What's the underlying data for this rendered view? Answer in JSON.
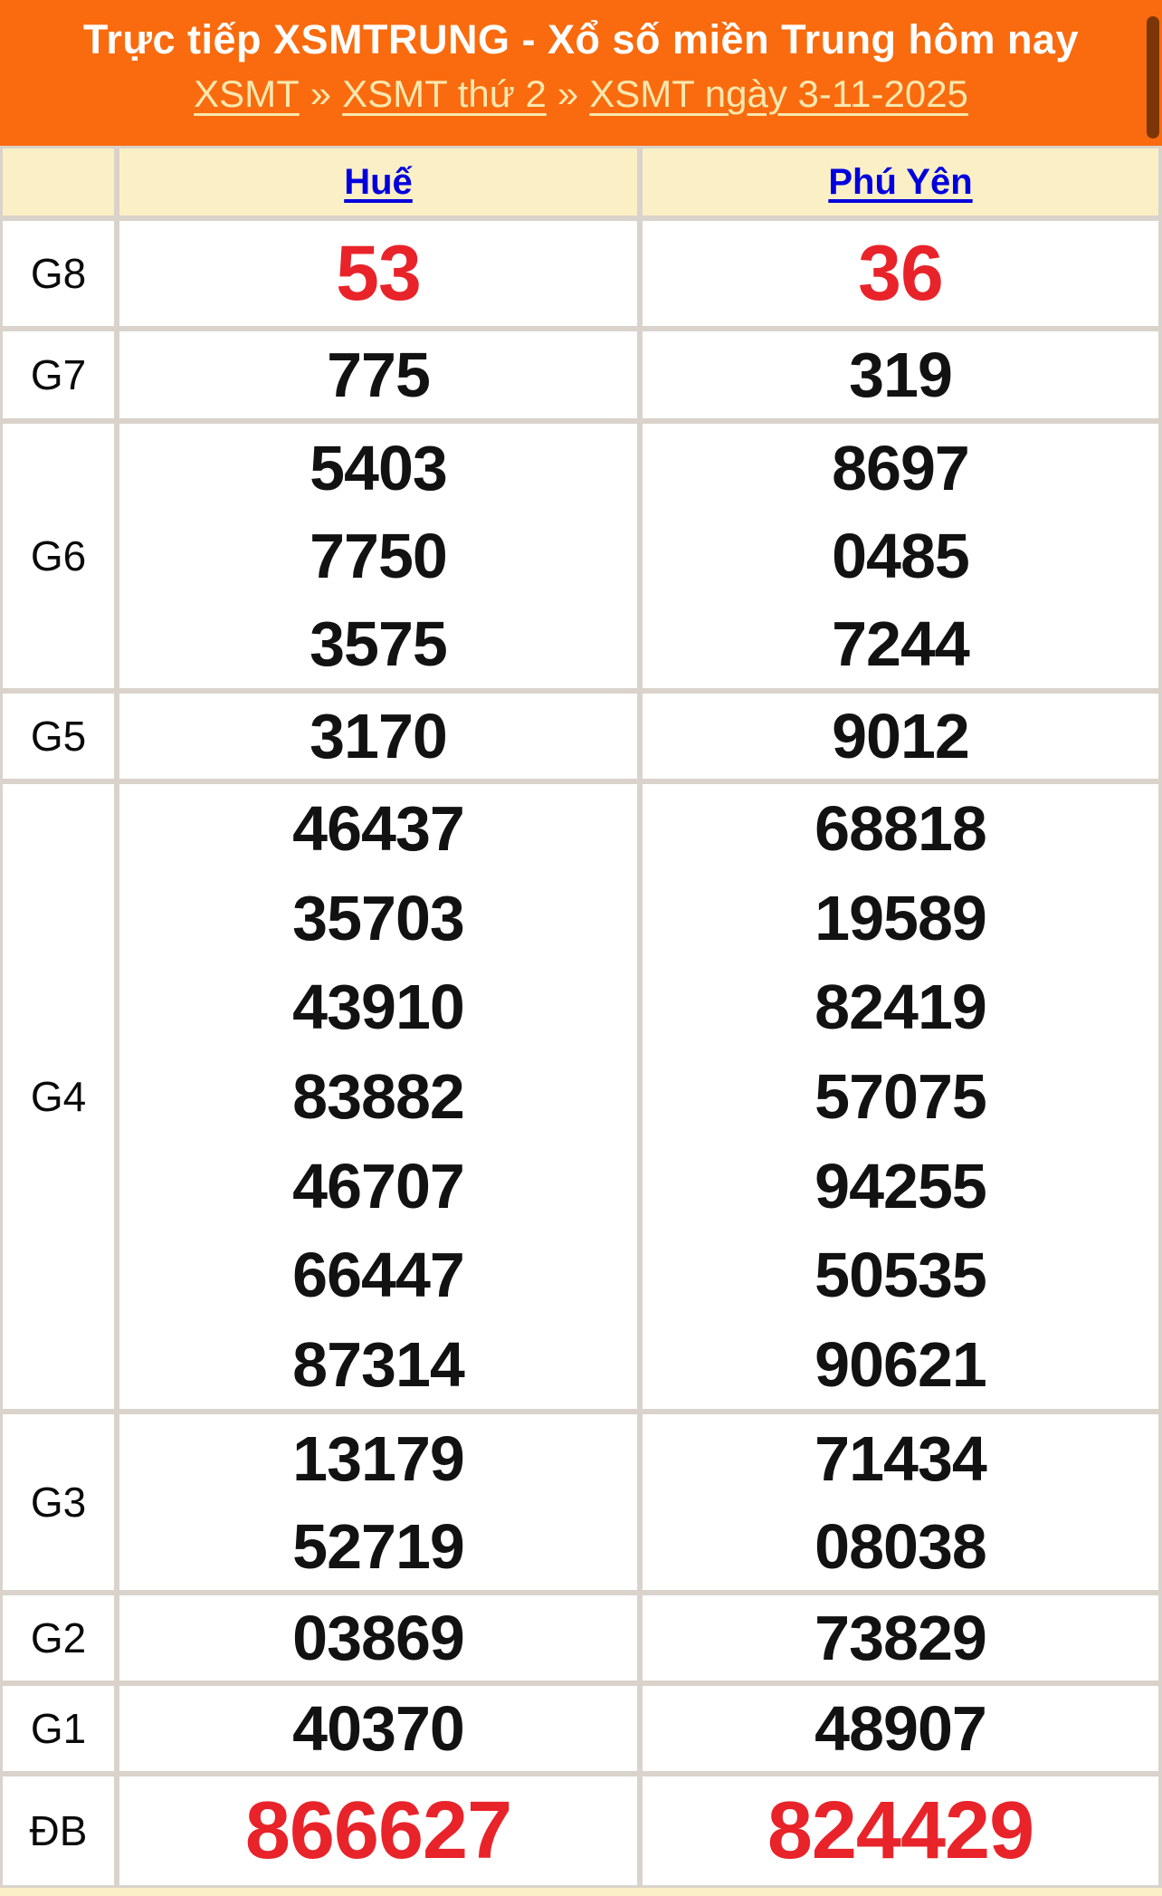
{
  "header": {
    "title": "Trực tiếp XSMTRUNG - Xổ số miền Trung hôm nay",
    "separator": "»",
    "breadcrumb": [
      "XSMT",
      "XSMT thứ 2",
      "XSMT ngày 3-11-2025"
    ]
  },
  "table": {
    "columns": [
      "",
      "Huế",
      "Phú Yên"
    ],
    "rows": [
      {
        "label": "G8",
        "hue": [
          "53"
        ],
        "phuyen": [
          "36"
        ]
      },
      {
        "label": "G7",
        "hue": [
          "775"
        ],
        "phuyen": [
          "319"
        ]
      },
      {
        "label": "G6",
        "hue": [
          "5403",
          "7750",
          "3575"
        ],
        "phuyen": [
          "8697",
          "0485",
          "7244"
        ]
      },
      {
        "label": "G5",
        "hue": [
          "3170"
        ],
        "phuyen": [
          "9012"
        ]
      },
      {
        "label": "G4",
        "hue": [
          "46437",
          "35703",
          "43910",
          "83882",
          "46707",
          "66447",
          "87314"
        ],
        "phuyen": [
          "68818",
          "19589",
          "82419",
          "57075",
          "94255",
          "50535",
          "90621"
        ]
      },
      {
        "label": "G3",
        "hue": [
          "13179",
          "52719"
        ],
        "phuyen": [
          "71434",
          "08038"
        ]
      },
      {
        "label": "G2",
        "hue": [
          "03869"
        ],
        "phuyen": [
          "73829"
        ]
      },
      {
        "label": "G1",
        "hue": [
          "40370"
        ],
        "phuyen": [
          "48907"
        ]
      },
      {
        "label": "ĐB",
        "hue": [
          "866627"
        ],
        "phuyen": [
          "824429"
        ]
      }
    ]
  },
  "colors": {
    "header_background": "#F96B0E",
    "title_text": "#FFFFFF",
    "breadcrumb_text": "#F8E7AE",
    "province_link": "#0000DE",
    "highlight_number": "#E82329",
    "standard_number": "#121212",
    "table_header_background": "#FBEFC5",
    "grid_line": "#D9D3CB",
    "scrollbar_thumb": "#7B3506"
  }
}
